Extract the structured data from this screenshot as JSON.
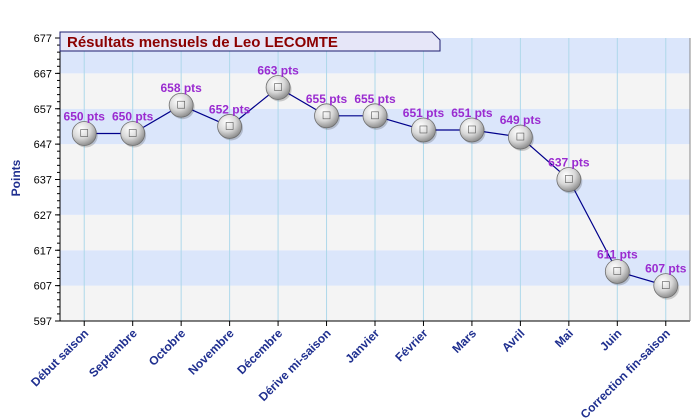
{
  "chart_data": {
    "type": "line",
    "title": "Résultats mensuels de  Leo LECOMTE",
    "ylabel": "Points",
    "xlabel": "",
    "ylim": [
      597,
      677
    ],
    "yticks": [
      597,
      607,
      617,
      627,
      637,
      647,
      657,
      667,
      677
    ],
    "grid": true,
    "categories": [
      "Début saison",
      "Septembre",
      "Octobre",
      "Novembre",
      "Décembre",
      "Dérive mi-saison",
      "Janvier",
      "Février",
      "Mars",
      "Avril",
      "Mai",
      "Juin",
      "Correction fin-saison"
    ],
    "values": [
      650,
      650,
      658,
      652,
      663,
      655,
      655,
      651,
      651,
      649,
      637,
      611,
      607
    ],
    "data_labels": [
      "650 pts",
      "650 pts",
      "658 pts",
      "652 pts",
      "663 pts",
      "655 pts",
      "655 pts",
      "651 pts",
      "651 pts",
      "649 pts",
      "637 pts",
      "611 pts",
      "607 pts"
    ],
    "colors": {
      "line": "#00008b",
      "band_blue": "#dbe6fb",
      "band_gray": "#f4f4f4",
      "title_box": "#e6e6f8",
      "title_text": "#8b0000",
      "data_label": "#9a2bd0",
      "axis_label": "#1f2f8f"
    }
  }
}
